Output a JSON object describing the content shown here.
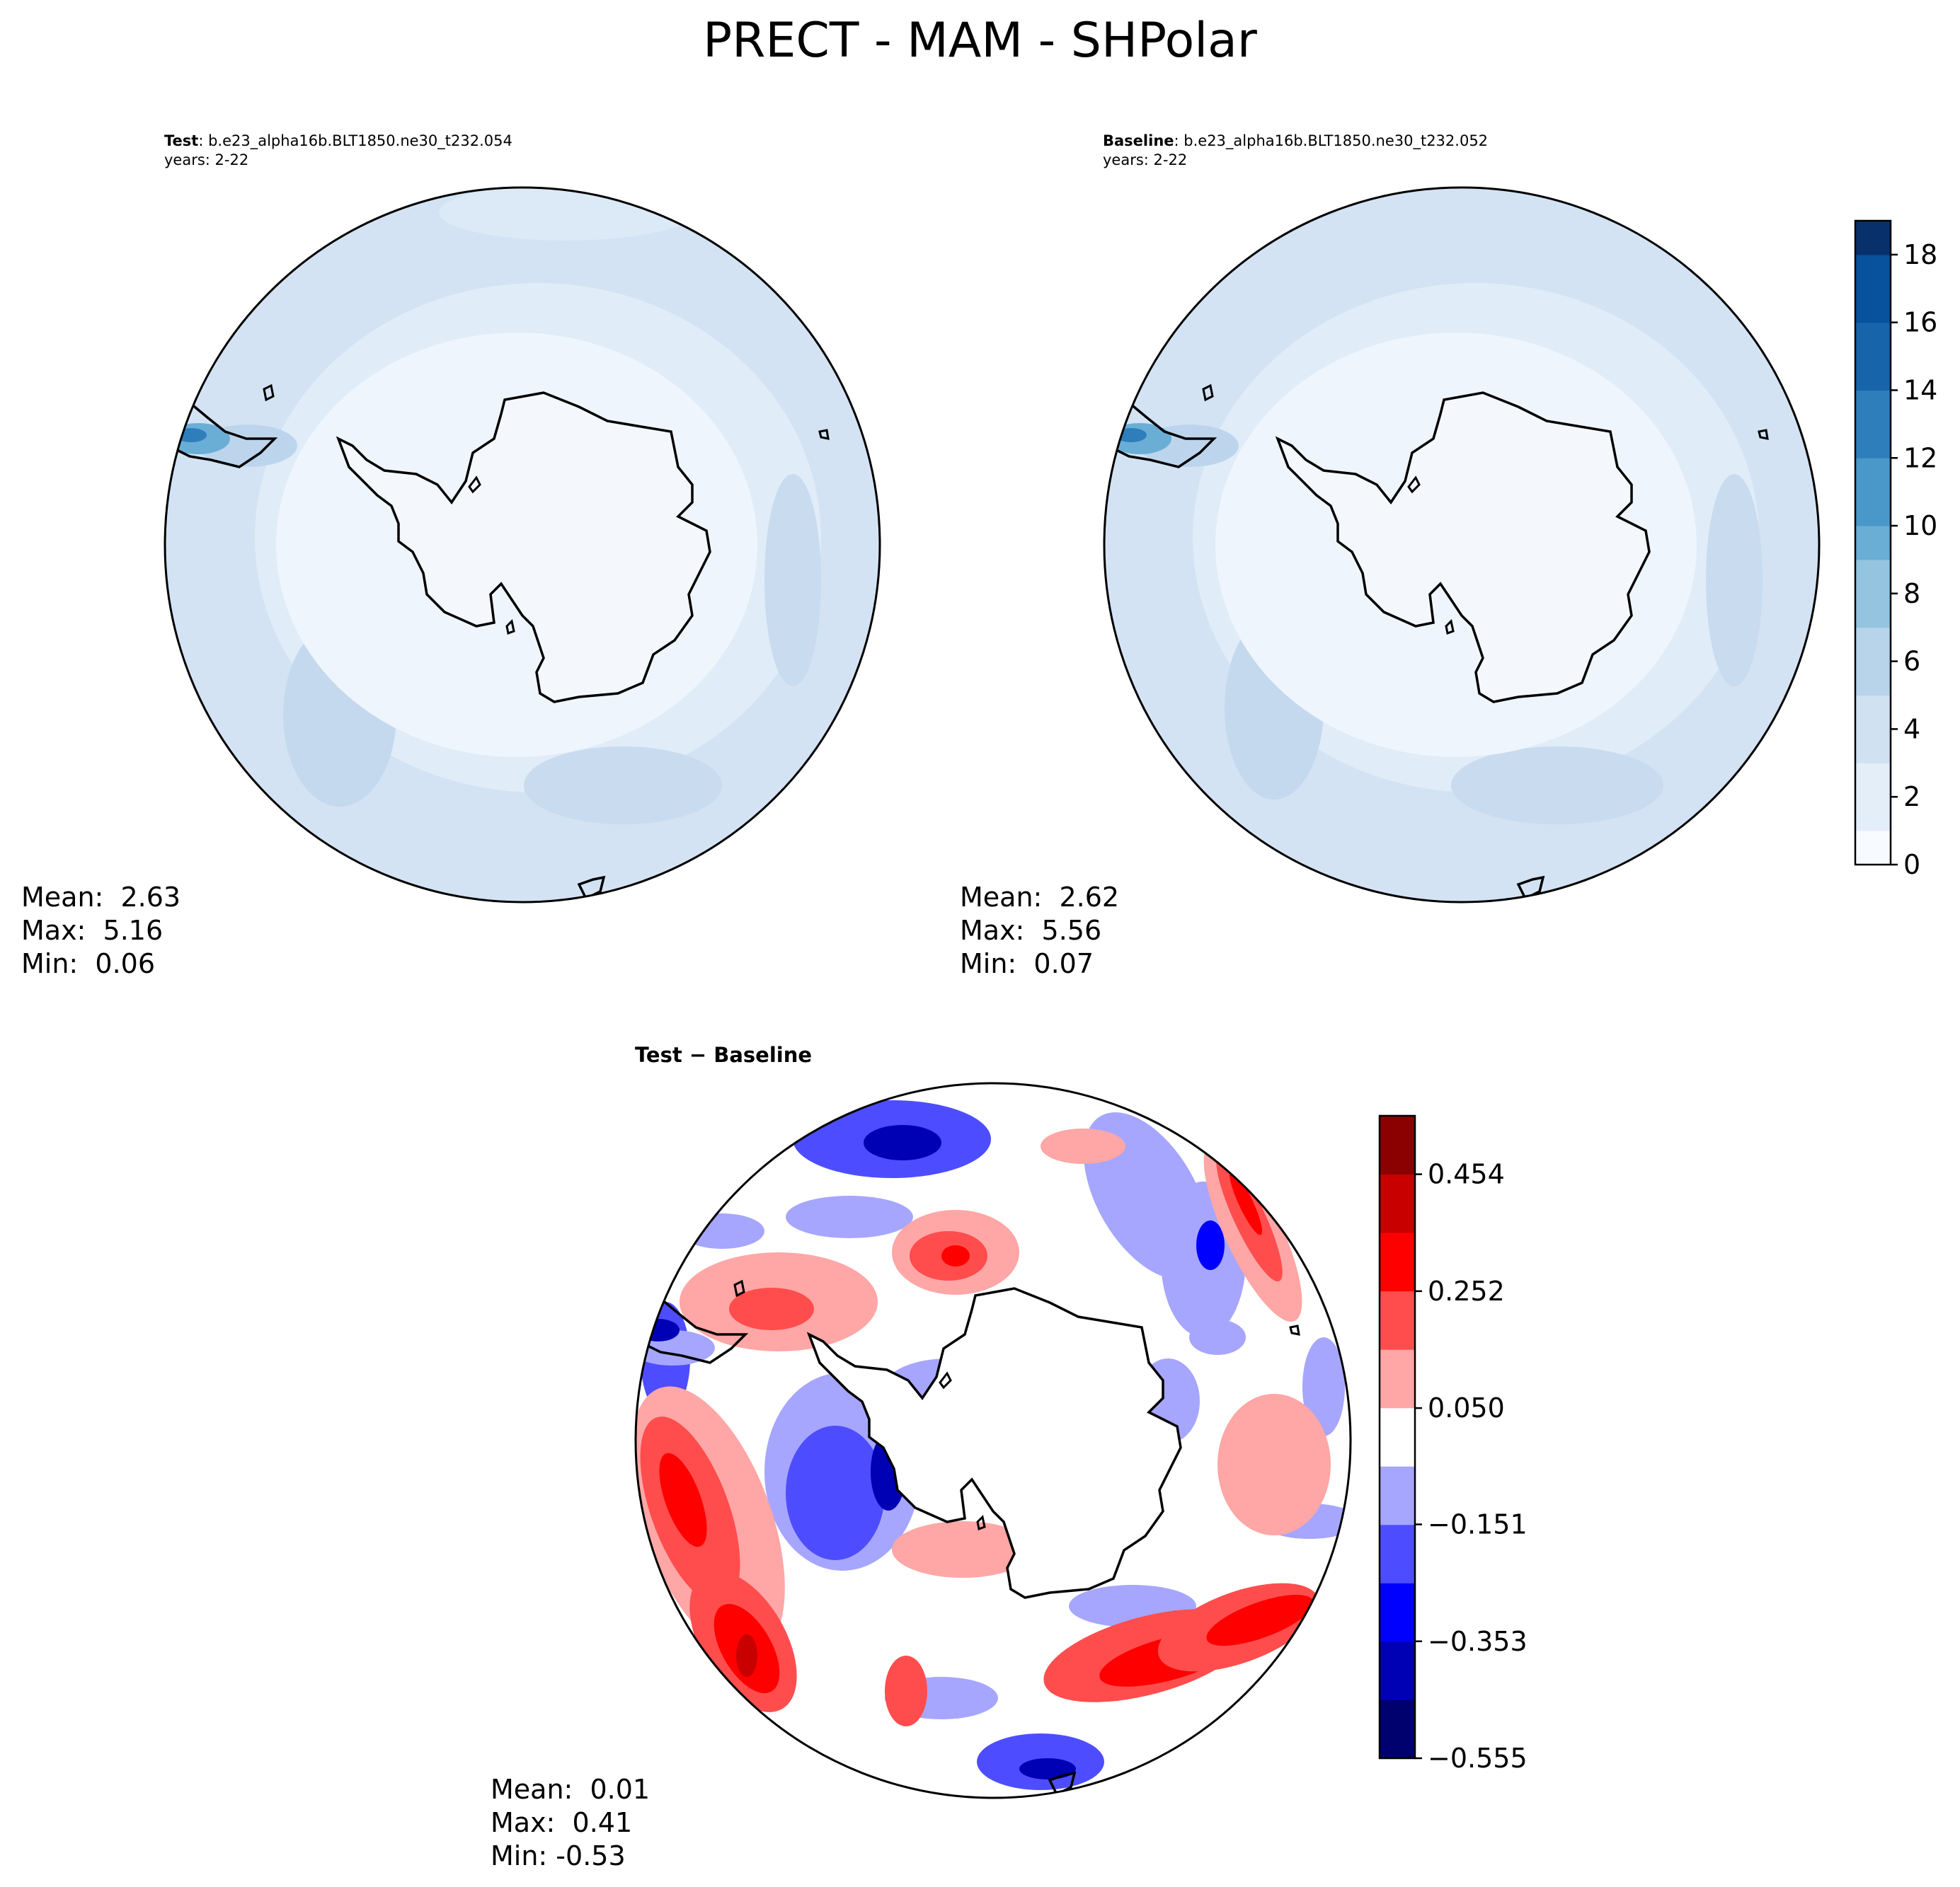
{
  "figure": {
    "title": "PRECT - MAM - SHPolar"
  },
  "panels": {
    "test": {
      "label": "Test",
      "case": ": b.e23_alpha16b.BLT1850.ne30_t232.054",
      "years": "years: 2-22",
      "mean": "Mean:  2.63",
      "max": "Max:  5.16",
      "min": "Min:  0.06"
    },
    "baseline": {
      "label": "Baseline",
      "case": ": b.e23_alpha16b.BLT1850.ne30_t232.052",
      "years": "years: 2-22",
      "mean": "Mean:  2.62",
      "max": "Max:  5.56",
      "min": "Min:  0.07"
    },
    "diff": {
      "label": "Test − Baseline",
      "mean": "Mean:  0.01",
      "max": "Max:  0.41",
      "min": "Min: -0.53"
    }
  },
  "colors": {
    "blues": [
      "#f7fbff",
      "#e3eef9",
      "#d0e1f2",
      "#b7d4ea",
      "#94c4df",
      "#6aaed6",
      "#4a98c9",
      "#2e7ebc",
      "#1764ab",
      "#08519c",
      "#08306b"
    ],
    "bwr": [
      "#00006e",
      "#0000b4",
      "#0000ff",
      "#4d4dff",
      "#a6a6ff",
      "#ffffff",
      "#ffa6a6",
      "#ff4d4d",
      "#ff0000",
      "#c80000",
      "#8b0000"
    ]
  },
  "chart_data": [
    {
      "type": "heatmap",
      "name": "Test",
      "projection": "South polar stereographic",
      "variable": "PRECT",
      "season": "MAM",
      "colorbar": {
        "range": [
          0,
          19
        ],
        "ticks": [
          "0",
          "2",
          "4",
          "6",
          "8",
          "10",
          "12",
          "14",
          "16",
          "18"
        ]
      }
    },
    {
      "type": "heatmap",
      "name": "Baseline",
      "projection": "South polar stereographic",
      "variable": "PRECT",
      "season": "MAM",
      "colorbar": {
        "range": [
          0,
          19
        ],
        "ticks": [
          "0",
          "2",
          "4",
          "6",
          "8",
          "10",
          "12",
          "14",
          "16",
          "18"
        ]
      }
    },
    {
      "type": "heatmap",
      "name": "Test − Baseline",
      "projection": "South polar stereographic",
      "colorbar": {
        "range": [
          -0.555,
          0.555
        ],
        "ticks": [
          "0.454",
          "0.252",
          "0.050",
          "−0.151",
          "−0.353",
          "−0.555"
        ]
      }
    }
  ]
}
